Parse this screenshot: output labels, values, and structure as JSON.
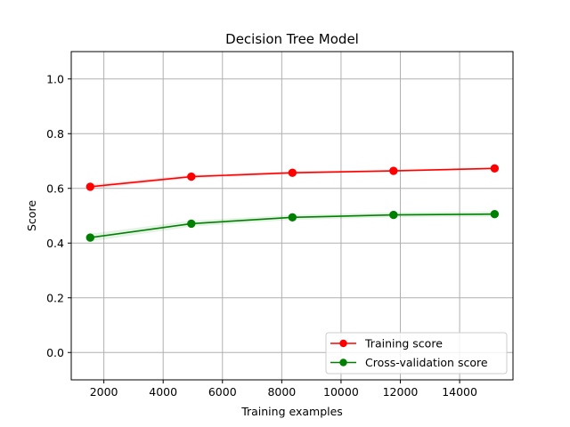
{
  "chart_data": {
    "type": "line",
    "title": "Decision Tree Model",
    "xlabel": "Training examples",
    "ylabel": "Score",
    "xlim": [
      900,
      15800
    ],
    "ylim": [
      -0.1,
      1.1
    ],
    "x_ticks": [
      2000,
      4000,
      6000,
      8000,
      10000,
      12000,
      14000
    ],
    "x_tick_labels": [
      "2000",
      "4000",
      "6000",
      "8000",
      "10000",
      "12000",
      "14000"
    ],
    "y_ticks": [
      0.0,
      0.2,
      0.4,
      0.6,
      0.8,
      1.0
    ],
    "y_tick_labels": [
      "0.0",
      "0.2",
      "0.4",
      "0.6",
      "0.8",
      "1.0"
    ],
    "grid": true,
    "legend_position": "lower-right",
    "x": [
      1540,
      4950,
      8360,
      11770,
      15180
    ],
    "series": [
      {
        "name": "Training score",
        "color": "#ff0000",
        "values": [
          0.606,
          0.643,
          0.657,
          0.664,
          0.673
        ],
        "band_low": [
          0.598,
          0.637,
          0.652,
          0.66,
          0.669
        ],
        "band_high": [
          0.614,
          0.649,
          0.662,
          0.668,
          0.677
        ]
      },
      {
        "name": "Cross-validation score",
        "color": "#008000",
        "values": [
          0.42,
          0.471,
          0.494,
          0.503,
          0.506
        ],
        "band_low": [
          0.406,
          0.46,
          0.485,
          0.494,
          0.496
        ],
        "band_high": [
          0.434,
          0.482,
          0.503,
          0.512,
          0.516
        ]
      }
    ]
  }
}
